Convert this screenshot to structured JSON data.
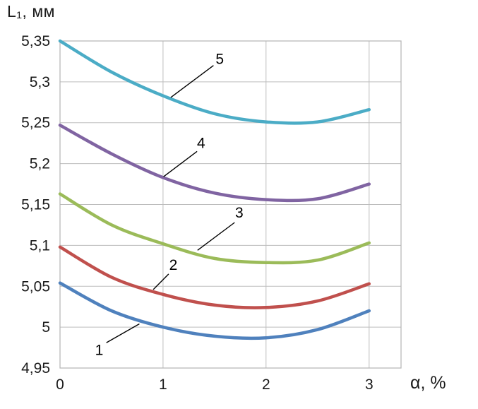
{
  "chart_data": {
    "type": "line",
    "title": "",
    "ylabel": "L₁, мм",
    "xlabel": "α, %",
    "xlim": [
      0,
      3.31
    ],
    "ylim": [
      4.95,
      5.35
    ],
    "grid": true,
    "legend": "none",
    "x_ticks": [
      0,
      1,
      2,
      3
    ],
    "x_tick_labels": [
      "0",
      "1",
      "2",
      "3"
    ],
    "y_ticks": [
      4.95,
      5,
      5.05,
      5.1,
      5.15,
      5.2,
      5.25,
      5.3,
      5.35
    ],
    "y_tick_labels": [
      "4,95",
      "5",
      "5,05",
      "5,1",
      "5,15",
      "5,2",
      "5,25",
      "5,3",
      "5,35"
    ],
    "x": [
      0,
      0.5,
      1,
      1.5,
      2,
      2.5,
      3
    ],
    "series": [
      {
        "name": "1",
        "color": "#4f81bd",
        "values": [
          5.054,
          5.02,
          5.0,
          4.989,
          4.987,
          4.997,
          5.02
        ]
      },
      {
        "name": "2",
        "color": "#c0504d",
        "values": [
          5.098,
          5.061,
          5.04,
          5.027,
          5.024,
          5.032,
          5.053
        ]
      },
      {
        "name": "3",
        "color": "#9bbb59",
        "values": [
          5.163,
          5.125,
          5.102,
          5.084,
          5.079,
          5.082,
          5.103
        ]
      },
      {
        "name": "4",
        "color": "#8064a2",
        "values": [
          5.247,
          5.212,
          5.183,
          5.164,
          5.156,
          5.157,
          5.175
        ]
      },
      {
        "name": "5",
        "color": "#4bacc6",
        "values": [
          5.35,
          5.312,
          5.283,
          5.261,
          5.251,
          5.251,
          5.266
        ]
      }
    ],
    "annotations": [
      {
        "label": "1",
        "text_x": 0.38,
        "text_y": 4.972,
        "line": [
          [
            0.45,
            4.981
          ],
          [
            0.77,
            5.004
          ]
        ]
      },
      {
        "label": "2",
        "text_x": 1.1,
        "text_y": 5.076,
        "line": [
          [
            1.055,
            5.065
          ],
          [
            0.905,
            5.046
          ]
        ]
      },
      {
        "label": "3",
        "text_x": 1.74,
        "text_y": 5.14,
        "line": [
          [
            1.695,
            5.128
          ],
          [
            1.335,
            5.094
          ]
        ]
      },
      {
        "label": "4",
        "text_x": 1.37,
        "text_y": 5.225,
        "line": [
          [
            1.33,
            5.215
          ],
          [
            1.005,
            5.184
          ]
        ]
      },
      {
        "label": "5",
        "text_x": 1.55,
        "text_y": 5.328,
        "line": [
          [
            1.49,
            5.32
          ],
          [
            1.075,
            5.281
          ]
        ]
      }
    ],
    "styles": {
      "grid_color": "#bdbdbd",
      "border_color": "#b3b3b3",
      "axis_text_color": "#1a1a1a",
      "annotation_color": "#000000",
      "line_width": 4.5,
      "tick_font_size": 21,
      "annotation_font_size": 21
    }
  }
}
